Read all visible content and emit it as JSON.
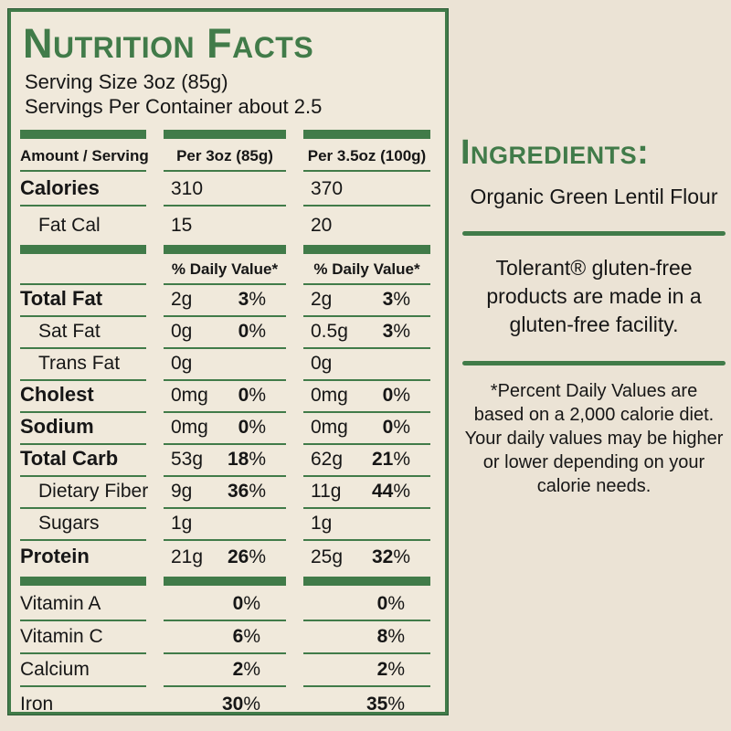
{
  "colors": {
    "green": "#417b49",
    "green_dark_edge": "#2d5c37",
    "background": "#ebe3d5",
    "panel_background": "#f0e9db",
    "text": "#161616"
  },
  "panel": {
    "title": "Nutrition Facts",
    "serving_size": "Serving Size 3oz (85g)",
    "servings_per_container": "Servings Per Container about 2.5",
    "table": {
      "rows": [
        {
          "type": "bars"
        },
        {
          "type": "header",
          "cells": [
            "Amount / Serving",
            "Per 3oz (85g)",
            "Per 3.5oz (100g)"
          ]
        },
        {
          "type": "simple",
          "label": "Calories",
          "bold": true,
          "indent": false,
          "v": [
            "310",
            "370"
          ],
          "underline": true
        },
        {
          "type": "simple",
          "label": "Fat Cal",
          "bold": false,
          "indent": true,
          "v": [
            "15",
            "20"
          ],
          "underline": false
        },
        {
          "type": "bars"
        },
        {
          "type": "dv",
          "label": "% Daily Value*",
          "underline": true
        },
        {
          "type": "nutrient",
          "label": "Total Fat",
          "bold": true,
          "indent": false,
          "cols": [
            [
              "2g",
              "3"
            ],
            [
              "2g",
              "3"
            ]
          ],
          "underline": true
        },
        {
          "type": "nutrient",
          "label": "Sat Fat",
          "bold": false,
          "indent": true,
          "cols": [
            [
              "0g",
              "0"
            ],
            [
              "0.5g",
              "3"
            ]
          ],
          "underline": true
        },
        {
          "type": "nutrient",
          "label": "Trans Fat",
          "bold": false,
          "indent": true,
          "cols": [
            [
              "0g",
              ""
            ],
            [
              "0g",
              ""
            ]
          ],
          "underline": true
        },
        {
          "type": "nutrient",
          "label": "Cholest",
          "bold": true,
          "indent": false,
          "cols": [
            [
              "0mg",
              "0"
            ],
            [
              "0mg",
              "0"
            ]
          ],
          "underline": true
        },
        {
          "type": "nutrient",
          "label": "Sodium",
          "bold": true,
          "indent": false,
          "cols": [
            [
              "0mg",
              "0"
            ],
            [
              "0mg",
              "0"
            ]
          ],
          "underline": true
        },
        {
          "type": "nutrient",
          "label": "Total Carb",
          "bold": true,
          "indent": false,
          "cols": [
            [
              "53g",
              "18"
            ],
            [
              "62g",
              "21"
            ]
          ],
          "underline": true
        },
        {
          "type": "nutrient",
          "label": "Dietary Fiber",
          "bold": false,
          "indent": true,
          "cols": [
            [
              "9g",
              "36"
            ],
            [
              "11g",
              "44"
            ]
          ],
          "underline": true
        },
        {
          "type": "nutrient",
          "label": "Sugars",
          "bold": false,
          "indent": true,
          "cols": [
            [
              "1g",
              ""
            ],
            [
              "1g",
              ""
            ]
          ],
          "underline": true
        },
        {
          "type": "nutrient",
          "label": "Protein",
          "bold": true,
          "indent": false,
          "cols": [
            [
              "21g",
              "26"
            ],
            [
              "25g",
              "32"
            ]
          ],
          "underline": false
        },
        {
          "type": "bars"
        },
        {
          "type": "vitamin",
          "label": "Vitamin A",
          "p": [
            "0",
            "0"
          ],
          "underline": true
        },
        {
          "type": "vitamin",
          "label": "Vitamin C",
          "p": [
            "6",
            "8"
          ],
          "underline": true
        },
        {
          "type": "vitamin",
          "label": "Calcium",
          "p": [
            "2",
            "2"
          ],
          "underline": true
        },
        {
          "type": "vitamin",
          "label": "Iron",
          "p": [
            "30",
            "35"
          ],
          "underline": false
        }
      ]
    }
  },
  "ingredients": {
    "heading": "Ingredients:",
    "item": "Organic Green Lentil Flour",
    "facility_note": "Tolerant® gluten-free\nproducts are made in a\ngluten-free facility.",
    "footnote": "*Percent Daily Values are\nbased on a 2,000 calorie diet.\nYour daily values may be higher\nor lower depending on your\ncalorie needs."
  }
}
